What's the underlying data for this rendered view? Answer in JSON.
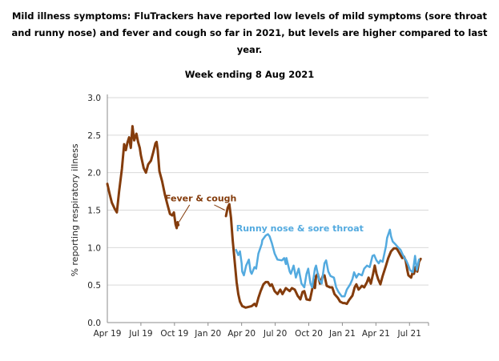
{
  "header": {
    "title": "Mild illness symptoms: FluTrackers have reported low levels of mild symptoms (sore throat and runny nose) and fever and cough so far in 2021, but levels are higher compared to last year."
  },
  "chart_data": {
    "type": "line",
    "title": "Week ending 8 Aug 2021",
    "xlabel": "",
    "ylabel": "% reporting respiratory illness",
    "x_unit": "months since Apr 2019",
    "xlim": [
      0,
      28.7
    ],
    "ylim": [
      0,
      3.0
    ],
    "y_ticks": [
      0.0,
      0.5,
      1.0,
      1.5,
      2.0,
      2.5,
      3.0
    ],
    "x_ticks": [
      {
        "t": 0,
        "label": "Apr 19"
      },
      {
        "t": 3,
        "label": "Jul 19"
      },
      {
        "t": 6,
        "label": "Oct 19"
      },
      {
        "t": 9,
        "label": "Jan 20"
      },
      {
        "t": 12,
        "label": "Apr 20"
      },
      {
        "t": 15,
        "label": "Jul 20"
      },
      {
        "t": 18,
        "label": "Oct 20"
      },
      {
        "t": 21,
        "label": "Jan 21"
      },
      {
        "t": 24,
        "label": "Apr 21"
      },
      {
        "t": 27,
        "label": "Jul 21"
      }
    ],
    "grid": "horizontal",
    "legend_position": "inline-annotations",
    "colors": {
      "fever": "#843C0C",
      "runny": "#53AADF",
      "gridline": "#d9d9d9",
      "axis": "#8c8c8c",
      "tick_text": "#262626"
    },
    "series": [
      {
        "name": "Fever & cough",
        "color": "#843C0C",
        "width": 3,
        "segments": [
          [
            [
              0,
              1.85
            ],
            [
              0.2,
              1.72
            ],
            [
              0.4,
              1.6
            ],
            [
              0.65,
              1.52
            ],
            [
              0.85,
              1.47
            ],
            [
              1.05,
              1.75
            ],
            [
              1.3,
              2.05
            ],
            [
              1.5,
              2.38
            ],
            [
              1.65,
              2.3
            ],
            [
              1.8,
              2.4
            ],
            [
              1.95,
              2.47
            ],
            [
              2.1,
              2.33
            ],
            [
              2.25,
              2.62
            ],
            [
              2.4,
              2.43
            ],
            [
              2.6,
              2.52
            ],
            [
              2.75,
              2.41
            ],
            [
              2.9,
              2.33
            ],
            [
              3.0,
              2.23
            ],
            [
              3.25,
              2.06
            ],
            [
              3.45,
              2.0
            ],
            [
              3.65,
              2.11
            ],
            [
              3.9,
              2.16
            ],
            [
              4.1,
              2.27
            ],
            [
              4.3,
              2.39
            ],
            [
              4.4,
              2.41
            ],
            [
              4.5,
              2.3
            ],
            [
              4.65,
              2.02
            ],
            [
              4.9,
              1.88
            ],
            [
              5.15,
              1.7
            ],
            [
              5.4,
              1.56
            ],
            [
              5.6,
              1.45
            ],
            [
              5.8,
              1.43
            ],
            [
              5.95,
              1.47
            ],
            [
              6.1,
              1.31
            ],
            [
              6.2,
              1.26
            ],
            [
              6.28,
              1.34
            ],
            [
              6.35,
              1.3
            ]
          ],
          [
            [
              10.6,
              1.42
            ],
            [
              10.75,
              1.53
            ],
            [
              10.9,
              1.58
            ],
            [
              11.05,
              1.4
            ],
            [
              11.2,
              1.1
            ],
            [
              11.35,
              0.86
            ],
            [
              11.55,
              0.54
            ],
            [
              11.7,
              0.38
            ],
            [
              11.85,
              0.28
            ],
            [
              12.05,
              0.22
            ],
            [
              12.35,
              0.2
            ],
            [
              12.65,
              0.21
            ],
            [
              12.9,
              0.22
            ],
            [
              13.15,
              0.25
            ],
            [
              13.3,
              0.22
            ],
            [
              13.5,
              0.33
            ],
            [
              13.7,
              0.42
            ],
            [
              13.95,
              0.51
            ],
            [
              14.15,
              0.54
            ],
            [
              14.35,
              0.54
            ],
            [
              14.55,
              0.49
            ],
            [
              14.7,
              0.51
            ],
            [
              14.95,
              0.42
            ],
            [
              15.2,
              0.38
            ],
            [
              15.45,
              0.44
            ],
            [
              15.65,
              0.38
            ],
            [
              15.95,
              0.46
            ],
            [
              16.3,
              0.42
            ],
            [
              16.5,
              0.46
            ],
            [
              16.75,
              0.44
            ],
            [
              17.0,
              0.36
            ],
            [
              17.25,
              0.31
            ],
            [
              17.45,
              0.41
            ],
            [
              17.6,
              0.42
            ],
            [
              17.8,
              0.31
            ],
            [
              18.1,
              0.3
            ],
            [
              18.3,
              0.44
            ],
            [
              18.45,
              0.57
            ],
            [
              18.55,
              0.46
            ],
            [
              18.65,
              0.62
            ],
            [
              18.8,
              0.65
            ],
            [
              19.0,
              0.52
            ],
            [
              19.25,
              0.62
            ],
            [
              19.4,
              0.63
            ],
            [
              19.6,
              0.49
            ],
            [
              19.9,
              0.47
            ],
            [
              20.1,
              0.47
            ],
            [
              20.3,
              0.38
            ],
            [
              20.6,
              0.33
            ],
            [
              20.8,
              0.28
            ],
            [
              21.05,
              0.26
            ],
            [
              21.2,
              0.26
            ],
            [
              21.4,
              0.25
            ],
            [
              21.6,
              0.3
            ],
            [
              21.9,
              0.36
            ],
            [
              22.1,
              0.47
            ],
            [
              22.25,
              0.51
            ],
            [
              22.45,
              0.44
            ],
            [
              22.75,
              0.49
            ],
            [
              22.95,
              0.47
            ],
            [
              23.2,
              0.54
            ],
            [
              23.35,
              0.6
            ],
            [
              23.55,
              0.52
            ],
            [
              23.75,
              0.65
            ],
            [
              23.9,
              0.76
            ],
            [
              24.05,
              0.65
            ],
            [
              24.2,
              0.58
            ],
            [
              24.4,
              0.51
            ],
            [
              24.6,
              0.62
            ],
            [
              24.9,
              0.76
            ],
            [
              25.1,
              0.86
            ],
            [
              25.35,
              0.95
            ],
            [
              25.6,
              0.99
            ],
            [
              25.85,
              0.99
            ],
            [
              26.05,
              0.94
            ],
            [
              26.2,
              0.9
            ],
            [
              26.35,
              0.86
            ],
            [
              26.5,
              0.88
            ],
            [
              26.65,
              0.83
            ],
            [
              26.8,
              0.7
            ],
            [
              26.9,
              0.63
            ],
            [
              27.15,
              0.6
            ],
            [
              27.3,
              0.68
            ],
            [
              27.4,
              0.65
            ],
            [
              27.55,
              0.74
            ],
            [
              27.7,
              0.68
            ],
            [
              27.85,
              0.81
            ],
            [
              28.0,
              0.85
            ]
          ]
        ]
      },
      {
        "name": "Runny nose & sore throat",
        "color": "#53AADF",
        "width": 2.5,
        "segments": [
          [
            [
              11.5,
              0.97
            ],
            [
              11.7,
              0.9
            ],
            [
              11.85,
              0.95
            ],
            [
              12.0,
              0.79
            ],
            [
              12.05,
              0.68
            ],
            [
              12.2,
              0.63
            ],
            [
              12.4,
              0.76
            ],
            [
              12.65,
              0.84
            ],
            [
              12.8,
              0.68
            ],
            [
              12.9,
              0.65
            ],
            [
              13.15,
              0.74
            ],
            [
              13.3,
              0.72
            ],
            [
              13.5,
              0.92
            ],
            [
              13.8,
              1.05
            ],
            [
              13.85,
              1.1
            ],
            [
              14.15,
              1.16
            ],
            [
              14.35,
              1.18
            ],
            [
              14.5,
              1.15
            ],
            [
              14.7,
              1.06
            ],
            [
              14.95,
              0.92
            ],
            [
              15.2,
              0.84
            ],
            [
              15.6,
              0.83
            ],
            [
              15.8,
              0.86
            ],
            [
              15.95,
              0.78
            ],
            [
              16.0,
              0.86
            ],
            [
              16.3,
              0.68
            ],
            [
              16.4,
              0.65
            ],
            [
              16.65,
              0.76
            ],
            [
              16.85,
              0.6
            ],
            [
              17.1,
              0.72
            ],
            [
              17.35,
              0.52
            ],
            [
              17.6,
              0.47
            ],
            [
              17.8,
              0.65
            ],
            [
              17.95,
              0.72
            ],
            [
              18.15,
              0.52
            ],
            [
              18.3,
              0.47
            ],
            [
              18.55,
              0.72
            ],
            [
              18.65,
              0.76
            ],
            [
              18.9,
              0.58
            ],
            [
              19.15,
              0.52
            ],
            [
              19.4,
              0.79
            ],
            [
              19.55,
              0.83
            ],
            [
              19.75,
              0.68
            ],
            [
              19.95,
              0.62
            ],
            [
              20.25,
              0.6
            ],
            [
              20.45,
              0.47
            ],
            [
              20.65,
              0.41
            ],
            [
              20.95,
              0.35
            ],
            [
              21.2,
              0.35
            ],
            [
              21.4,
              0.44
            ],
            [
              21.7,
              0.51
            ],
            [
              21.9,
              0.58
            ],
            [
              22.05,
              0.67
            ],
            [
              22.25,
              0.6
            ],
            [
              22.45,
              0.65
            ],
            [
              22.75,
              0.63
            ],
            [
              22.95,
              0.72
            ],
            [
              23.2,
              0.76
            ],
            [
              23.45,
              0.74
            ],
            [
              23.7,
              0.89
            ],
            [
              23.85,
              0.9
            ],
            [
              24.05,
              0.83
            ],
            [
              24.25,
              0.79
            ],
            [
              24.4,
              0.83
            ],
            [
              24.6,
              0.81
            ],
            [
              24.9,
              1.02
            ],
            [
              25.0,
              1.13
            ],
            [
              25.25,
              1.24
            ],
            [
              25.35,
              1.15
            ],
            [
              25.5,
              1.08
            ],
            [
              25.7,
              1.05
            ],
            [
              26.0,
              1.0
            ],
            [
              26.2,
              0.97
            ],
            [
              26.35,
              0.92
            ],
            [
              26.55,
              0.86
            ],
            [
              26.7,
              0.83
            ],
            [
              26.9,
              0.76
            ],
            [
              27.05,
              0.7
            ],
            [
              27.3,
              0.67
            ],
            [
              27.5,
              0.89
            ],
            [
              27.65,
              0.7
            ],
            [
              27.85,
              0.84
            ]
          ]
        ]
      }
    ],
    "annotations": [
      {
        "text": "Fever & cough",
        "color": "#843C0C",
        "t": 8.35,
        "v": 1.66,
        "connectors": [
          {
            "t1": 7.35,
            "v1": 1.57,
            "t2": 6.4,
            "v2": 1.34
          },
          {
            "t1": 9.55,
            "v1": 1.57,
            "t2": 10.5,
            "v2": 1.5
          }
        ]
      },
      {
        "text": "Runny nose & sore throat",
        "color": "#53AADF",
        "t": 17.2,
        "v": 1.26,
        "connectors": []
      }
    ]
  }
}
